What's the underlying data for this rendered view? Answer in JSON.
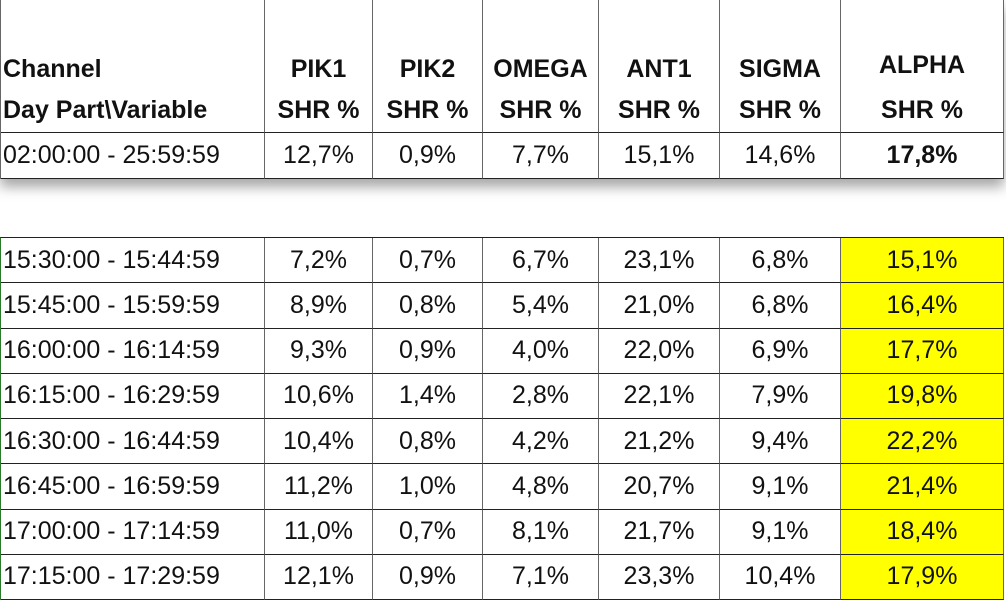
{
  "top_table": {
    "header": [
      "Channel",
      "PIK1",
      "PIK2",
      "OMEGA",
      "ANT1",
      "SIGMA",
      "ALPHA"
    ],
    "subheader": [
      "Day Part\\Variable",
      "SHR %",
      "SHR %",
      "SHR %",
      "SHR %",
      "SHR %",
      "SHR %"
    ],
    "rows": [
      [
        "02:00:00 - 25:59:59",
        "12,7%",
        "0,9%",
        "7,7%",
        "15,1%",
        "14,6%",
        "17,8%"
      ]
    ]
  },
  "bottom_table": {
    "rows": [
      [
        "15:30:00 - 15:44:59",
        "7,2%",
        "0,7%",
        "6,7%",
        "23,1%",
        "6,8%",
        "15,1%"
      ],
      [
        "15:45:00 - 15:59:59",
        "8,9%",
        "0,8%",
        "5,4%",
        "21,0%",
        "6,8%",
        "16,4%"
      ],
      [
        "16:00:00 - 16:14:59",
        "9,3%",
        "0,9%",
        "4,0%",
        "22,0%",
        "6,9%",
        "17,7%"
      ],
      [
        "16:15:00 - 16:29:59",
        "10,6%",
        "1,4%",
        "2,8%",
        "22,1%",
        "7,9%",
        "19,8%"
      ],
      [
        "16:30:00 - 16:44:59",
        "10,4%",
        "0,8%",
        "4,2%",
        "21,2%",
        "9,4%",
        "22,2%"
      ],
      [
        "16:45:00 - 16:59:59",
        "11,2%",
        "1,0%",
        "4,8%",
        "20,7%",
        "9,1%",
        "21,4%"
      ],
      [
        "17:00:00 - 17:14:59",
        "11,0%",
        "0,7%",
        "8,1%",
        "21,7%",
        "9,1%",
        "18,4%"
      ],
      [
        "17:15:00 - 17:29:59",
        "12,1%",
        "0,9%",
        "7,1%",
        "23,3%",
        "10,4%",
        "17,9%"
      ]
    ]
  }
}
